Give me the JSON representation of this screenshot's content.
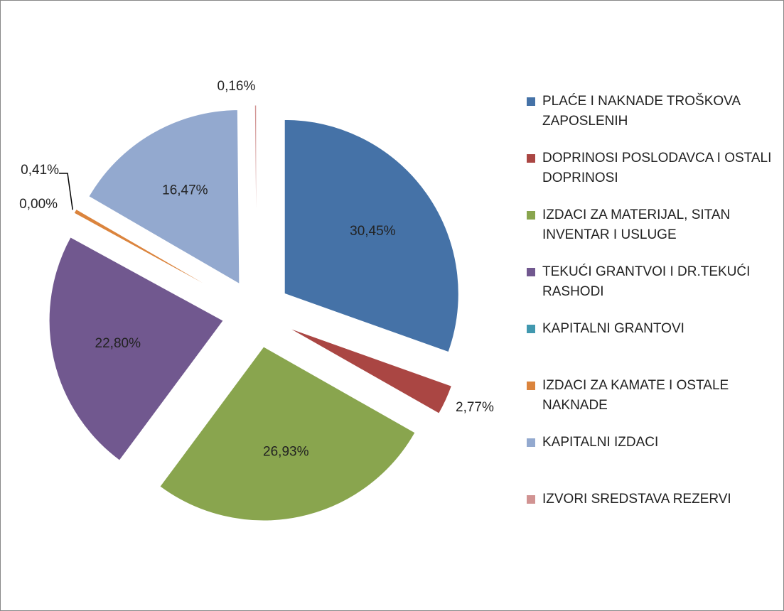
{
  "chart_data": {
    "type": "pie",
    "categories": [
      "PLAĆE I NAKNADE TROŠKOVA ZAPOSLENIH",
      "DOPRINOSI POSLODAVCA I OSTALI DOPRINOSI",
      "IZDACI ZA MATERIJAL, SITAN INVENTAR I USLUGE",
      "TEKUĆI GRANTVOI I DR.TEKUĆI RASHODI",
      "KAPITALNI GRANTOVI",
      "IZDACI ZA KAMATE I OSTALE NAKNADE",
      "KAPITALNI IZDACI",
      "IZVORI SREDSTAVA REZERVI"
    ],
    "values": [
      30.45,
      2.77,
      26.93,
      22.8,
      0.0,
      0.41,
      16.47,
      0.16
    ],
    "value_labels": [
      "30,45%",
      "2,77%",
      "26,93%",
      "22,80%",
      "0,00%",
      "0,41%",
      "16,47%",
      "0,16%"
    ],
    "colors": [
      "#4572a7",
      "#aa4643",
      "#89a54e",
      "#71588f",
      "#4198af",
      "#db843d",
      "#93a9cf",
      "#d19392"
    ],
    "legend": "right"
  }
}
